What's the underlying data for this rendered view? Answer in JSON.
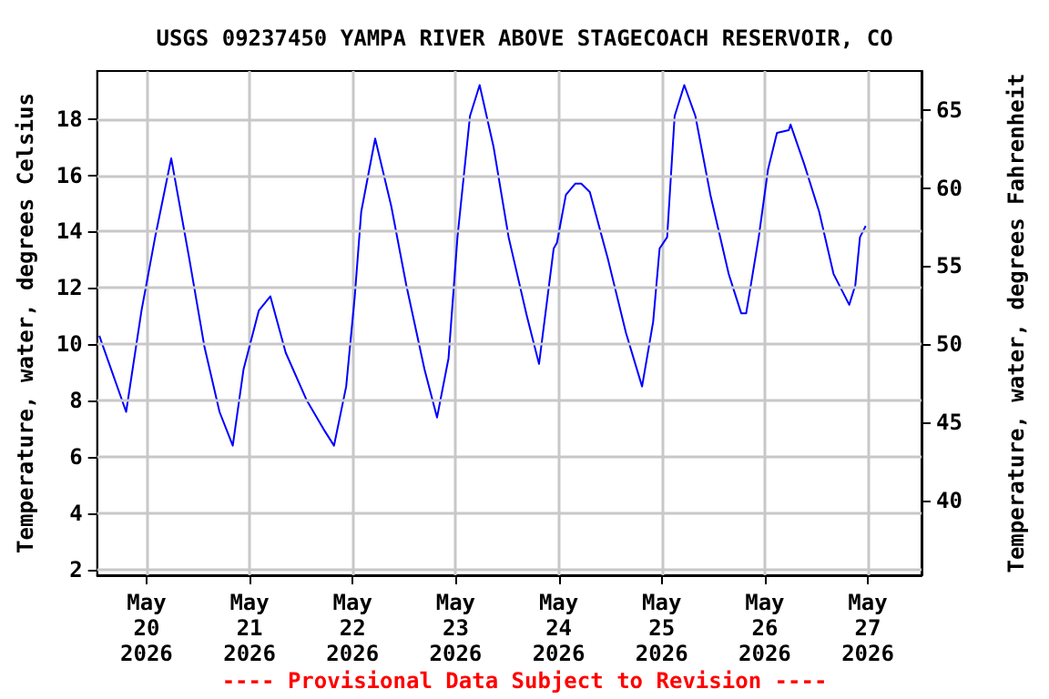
{
  "chart_data": {
    "type": "line",
    "title": "USGS 09237450 YAMPA RIVER ABOVE STAGECOACH RESERVOIR, CO",
    "ylabel": "Temperature, water, degrees Celsius",
    "y2label": "Temperature, water, degrees Fahrenheit",
    "annotations": [
      "---- Provisional Data Subject to Revision ----"
    ],
    "x": [
      "2026-05-19T13:00",
      "2026-05-19T19:15",
      "2026-05-19T22:50",
      "2026-05-20T02:00",
      "2026-05-20T05:45",
      "2026-05-20T10:00",
      "2026-05-20T13:30",
      "2026-05-20T17:00",
      "2026-05-20T20:05",
      "2026-05-20T22:35",
      "2026-05-21T02:10",
      "2026-05-21T04:50",
      "2026-05-21T08:25",
      "2026-05-21T13:20",
      "2026-05-21T17:35",
      "2026-05-21T19:40",
      "2026-05-21T22:30",
      "2026-05-22T00:30",
      "2026-05-22T02:00",
      "2026-05-22T05:15",
      "2026-05-22T09:00",
      "2026-05-22T12:30",
      "2026-05-22T16:45",
      "2026-05-22T19:40",
      "2026-05-22T22:20",
      "2026-05-23T00:25",
      "2026-05-23T03:20",
      "2026-05-23T05:35",
      "2026-05-23T08:50",
      "2026-05-23T12:20",
      "2026-05-23T16:35",
      "2026-05-23T19:25",
      "2026-05-23T22:50",
      "2026-05-23T23:35",
      "2026-05-24T01:40",
      "2026-05-24T03:50",
      "2026-05-24T05:15",
      "2026-05-24T07:15",
      "2026-05-24T11:30",
      "2026-05-24T15:40",
      "2026-05-24T19:25",
      "2026-05-24T22:00",
      "2026-05-24T23:30",
      "2026-05-25T01:15",
      "2026-05-25T03:00",
      "2026-05-25T05:15",
      "2026-05-25T07:50",
      "2026-05-25T11:20",
      "2026-05-25T15:35",
      "2026-05-25T18:30",
      "2026-05-25T19:40",
      "2026-05-25T22:35",
      "2026-05-26T00:45",
      "2026-05-26T02:50",
      "2026-05-26T05:35",
      "2026-05-26T06:00",
      "2026-05-26T09:10",
      "2026-05-26T12:40",
      "2026-05-26T16:00",
      "2026-05-26T19:40",
      "2026-05-26T21:05",
      "2026-05-26T22:10",
      "2026-05-26T23:30"
    ],
    "series": [
      {
        "color": "#0000ff",
        "values": [
          10.3,
          7.6,
          11.2,
          13.8,
          16.6,
          13.0,
          9.9,
          7.6,
          6.4,
          9.1,
          11.2,
          11.7,
          9.7,
          8.0,
          6.9,
          6.4,
          8.5,
          11.7,
          14.7,
          17.3,
          14.9,
          12.1,
          9.1,
          7.4,
          9.5,
          13.8,
          18.1,
          19.2,
          17.0,
          13.8,
          11.0,
          9.3,
          13.4,
          13.6,
          15.3,
          15.7,
          15.7,
          15.4,
          13.0,
          10.4,
          8.5,
          10.8,
          13.4,
          13.8,
          18.1,
          19.2,
          18.1,
          15.3,
          12.5,
          11.1,
          11.1,
          13.8,
          16.2,
          17.5,
          17.6,
          17.8,
          16.4,
          14.7,
          12.5,
          11.4,
          12.1,
          13.8,
          14.2
        ]
      }
    ],
    "xlim": [
      "2026-05-19T12:30",
      "2026-05-27T12:30"
    ],
    "xticks": [
      {
        "value": "2026-05-20T00:00",
        "label": "May\n20\n2026"
      },
      {
        "value": "2026-05-21T00:00",
        "label": "May\n21\n2026"
      },
      {
        "value": "2026-05-22T00:00",
        "label": "May\n22\n2026"
      },
      {
        "value": "2026-05-23T00:00",
        "label": "May\n23\n2026"
      },
      {
        "value": "2026-05-24T00:00",
        "label": "May\n24\n2026"
      },
      {
        "value": "2026-05-25T00:00",
        "label": "May\n25\n2026"
      },
      {
        "value": "2026-05-26T00:00",
        "label": "May\n26\n2026"
      },
      {
        "value": "2026-05-27T00:00",
        "label": "May\n27\n2026"
      }
    ],
    "ylim": [
      1.8,
      19.7
    ],
    "yticks": [
      2,
      4,
      6,
      8,
      10,
      12,
      14,
      16,
      18
    ],
    "y2lim": [
      35.2,
      67.5
    ],
    "y2ticks": [
      40,
      45,
      50,
      55,
      60,
      65
    ],
    "grid": true,
    "marker": "none",
    "line_style": "solid"
  }
}
